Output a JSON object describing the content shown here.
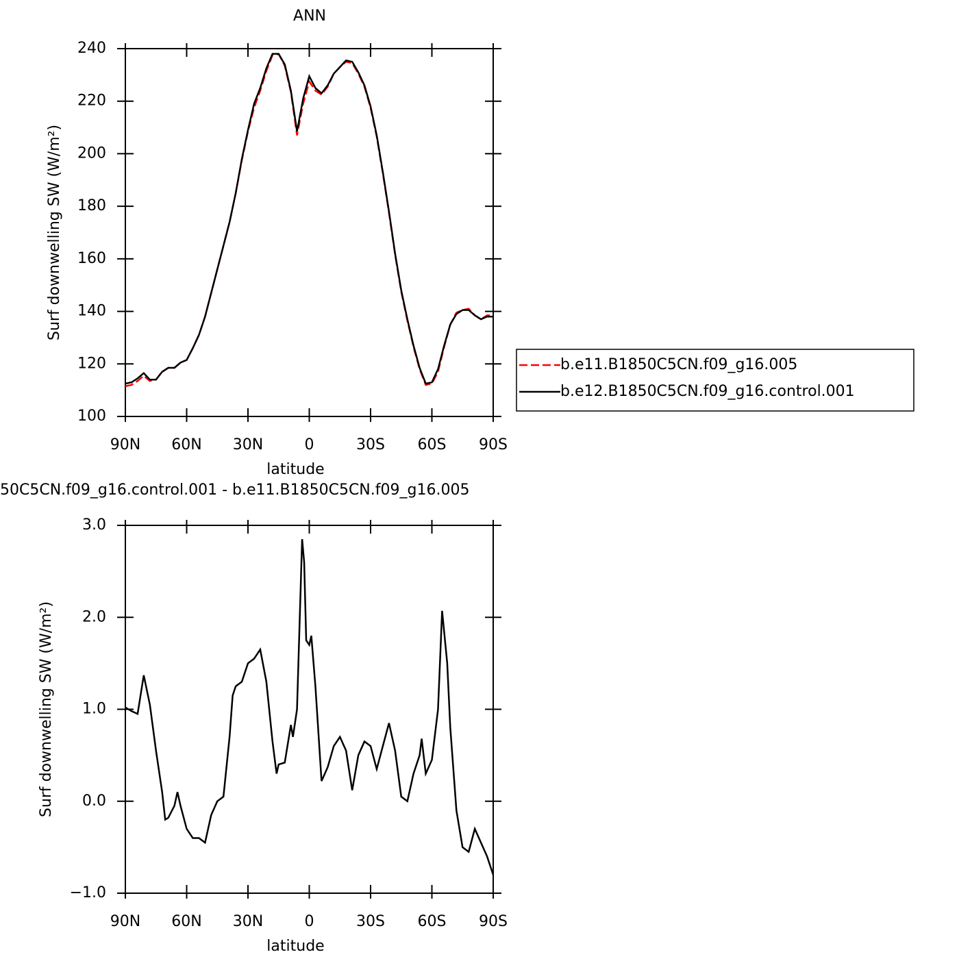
{
  "chart_data": [
    {
      "type": "line",
      "title": "ANN",
      "xlabel": "latitude",
      "ylabel": "Surf downwelling SW (W/m²)",
      "xlim": [
        90,
        -90
      ],
      "ylim": [
        100,
        240
      ],
      "xticks": [
        {
          "value": 90,
          "label": "90N"
        },
        {
          "value": 60,
          "label": "60N"
        },
        {
          "value": 30,
          "label": "30N"
        },
        0,
        {
          "value": -30,
          "label": "30S"
        },
        {
          "value": -60,
          "label": "60S"
        },
        {
          "value": -90,
          "label": "90S"
        }
      ],
      "yticks": [
        100,
        120,
        140,
        160,
        180,
        200,
        220,
        240
      ],
      "legend": "right",
      "x": [
        90,
        87,
        84,
        81,
        78,
        75,
        72,
        69,
        66,
        63,
        60,
        57,
        54,
        51,
        48,
        45,
        42,
        39,
        36,
        33,
        30,
        27,
        24,
        21,
        18,
        15,
        12,
        9,
        6,
        3,
        0,
        -3,
        -6,
        -9,
        -12,
        -15,
        -18,
        -21,
        -24,
        -27,
        -30,
        -33,
        -36,
        -39,
        -42,
        -45,
        -48,
        -51,
        -54,
        -57,
        -60,
        -63,
        -66,
        -69,
        -72,
        -75,
        -78,
        -81,
        -84,
        -87,
        -90
      ],
      "series": [
        {
          "name": "b.e11.B1850C5CN.f09_g16.005",
          "color": "#ff0000",
          "dash": "dashed",
          "values": [
            111.5,
            112,
            113.5,
            115.5,
            113.5,
            114,
            117,
            118.5,
            118.5,
            120.5,
            121.5,
            126,
            131,
            138,
            147,
            156,
            165,
            174,
            185,
            197.5,
            208.5,
            217.5,
            224,
            231.5,
            237.5,
            238,
            233.5,
            223.5,
            207,
            219,
            227.5,
            224,
            222.5,
            225.5,
            230.5,
            233,
            235,
            234.5,
            230.5,
            225.5,
            217.5,
            206.5,
            192.5,
            177.5,
            161.5,
            147.5,
            136.5,
            126.5,
            118,
            112,
            112.5,
            117,
            126.5,
            135,
            139.5,
            140.5,
            141,
            138.5,
            137,
            138.5,
            138.5
          ]
        },
        {
          "name": "b.e12.B1850C5CN.f09_g16.control.001",
          "color": "#000000",
          "dash": "solid",
          "values": [
            112.5,
            113,
            114.5,
            116.5,
            114,
            114,
            117,
            118.5,
            118.5,
            120.5,
            121.5,
            126,
            131,
            138,
            147,
            156,
            165,
            174,
            185,
            198,
            209,
            219,
            225,
            232.5,
            238,
            238,
            234,
            224,
            208.5,
            221,
            229.5,
            225,
            223,
            226,
            230.5,
            233,
            235.5,
            235,
            231,
            226,
            218,
            207,
            193,
            178,
            162,
            148,
            137,
            127,
            118.5,
            112.5,
            113,
            118,
            127,
            135,
            139,
            140.5,
            140.5,
            138.5,
            137,
            138,
            138
          ]
        }
      ]
    },
    {
      "type": "line",
      "title": "50C5CN.f09_g16.control.001 - b.e11.B1850C5CN.f09_g16.005",
      "xlabel": "latitude",
      "ylabel": "Surf downwelling SW (W/m²)",
      "xlim": [
        90,
        -90
      ],
      "ylim": [
        -1,
        3
      ],
      "xticks": [
        {
          "value": 90,
          "label": "90N"
        },
        {
          "value": 60,
          "label": "60N"
        },
        {
          "value": 30,
          "label": "30N"
        },
        0,
        {
          "value": -30,
          "label": "30S"
        },
        {
          "value": -60,
          "label": "60S"
        },
        {
          "value": -90,
          "label": "90S"
        }
      ],
      "yticks": [
        {
          "value": -1,
          "label": "−1.0"
        },
        {
          "value": 0,
          "label": "0.0"
        },
        {
          "value": 1,
          "label": "1.0"
        },
        {
          "value": 2,
          "label": "2.0"
        },
        {
          "value": 3,
          "label": "3.0"
        }
      ],
      "color": "#000000",
      "x": [
        90,
        87,
        84,
        81,
        78,
        75,
        72,
        70.5,
        69,
        66,
        64.5,
        63,
        60,
        57,
        54,
        51,
        48,
        45,
        42,
        39,
        37.5,
        36,
        33,
        30,
        27,
        24,
        21,
        18,
        16,
        15,
        12,
        9,
        8,
        6,
        3.5,
        2.5,
        1.5,
        0,
        -1,
        -3,
        -6,
        -9,
        -12,
        -15,
        -18,
        -21,
        -24,
        -27,
        -30,
        -33,
        -36,
        -39,
        -42,
        -45,
        -48,
        -51,
        -54,
        -55,
        -57,
        -60,
        -63,
        -65,
        -67.5,
        -69,
        -72,
        -75,
        -78,
        -81,
        -84,
        -87,
        -90
      ],
      "values": [
        1.02,
        0.98,
        0.95,
        1.37,
        1.05,
        0.55,
        0.1,
        -0.2,
        -0.18,
        -0.05,
        0.1,
        -0.05,
        -0.3,
        -0.4,
        -0.4,
        -0.45,
        -0.15,
        0.0,
        0.05,
        0.7,
        1.15,
        1.25,
        1.3,
        1.5,
        1.55,
        1.65,
        1.3,
        0.65,
        0.3,
        0.4,
        0.42,
        0.83,
        0.7,
        1.0,
        2.85,
        2.6,
        1.75,
        1.7,
        1.8,
        1.25,
        0.22,
        0.37,
        0.6,
        0.7,
        0.55,
        0.12,
        0.5,
        0.65,
        0.6,
        0.35,
        0.6,
        0.85,
        0.55,
        0.05,
        0.0,
        0.3,
        0.5,
        0.68,
        0.3,
        0.45,
        1.0,
        2.07,
        1.5,
        0.8,
        -0.1,
        -0.5,
        -0.55,
        -0.3,
        -0.45,
        -0.6,
        -0.8
      ]
    }
  ]
}
